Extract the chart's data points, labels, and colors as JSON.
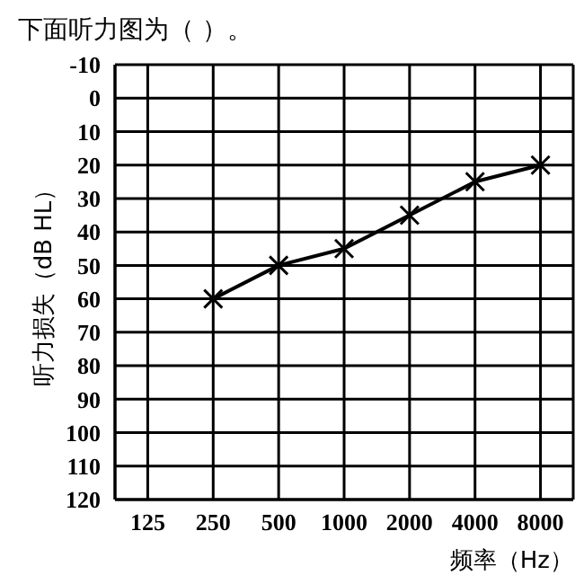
{
  "chart_data": {
    "type": "line",
    "title": "下面听力图为（ ）。",
    "xlabel": "频率（Hz）",
    "ylabel": "听力损失（dB HL）",
    "categories": [
      "125",
      "250",
      "500",
      "1000",
      "2000",
      "4000",
      "8000"
    ],
    "series": [
      {
        "color": "#000000",
        "values": [
          null,
          60,
          50,
          45,
          35,
          25,
          20
        ]
      }
    ],
    "ylim": [
      120,
      -10
    ],
    "yticks": [
      -10,
      0,
      10,
      20,
      30,
      40,
      50,
      60,
      70,
      80,
      90,
      100,
      110,
      120
    ],
    "grid": true,
    "marker": "cross",
    "line_style": "solid"
  }
}
